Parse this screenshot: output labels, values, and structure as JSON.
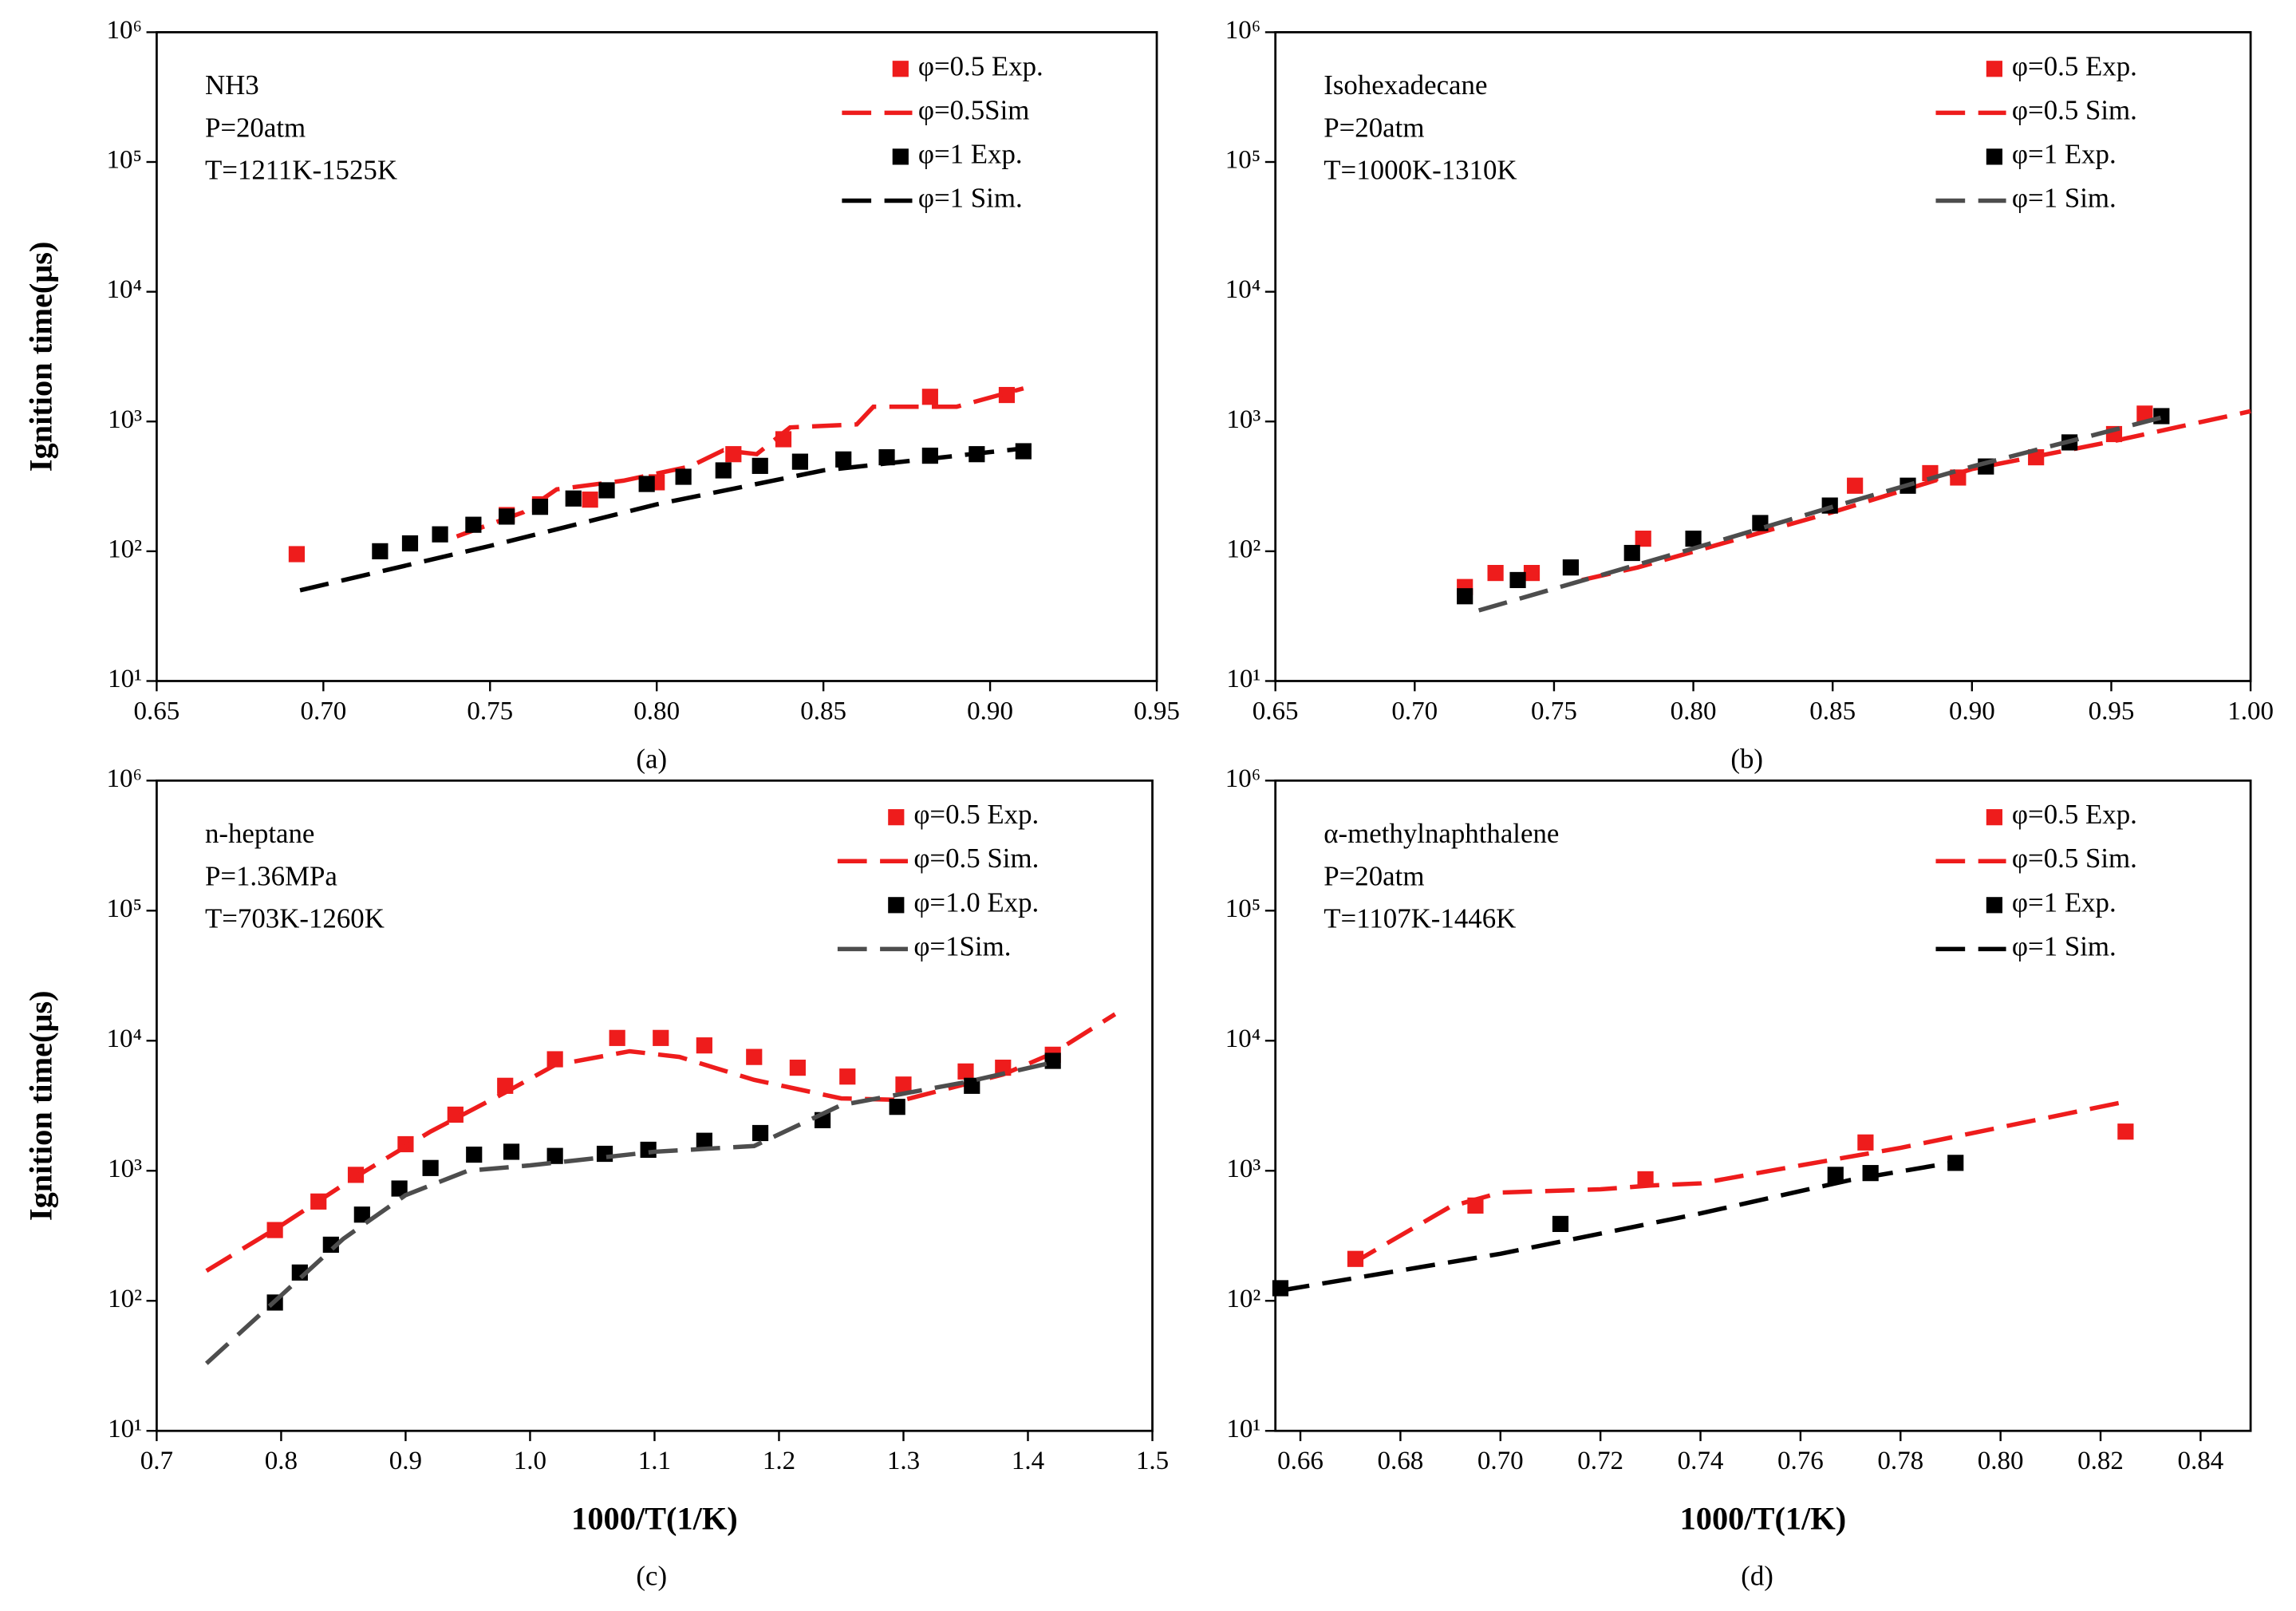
{
  "chart_data": [
    {
      "type": "line",
      "caption": "(a)",
      "ylabel": "Ignition time(μs)",
      "annotation": [
        "NH3",
        "P=20atm",
        "T=1211K-1525K"
      ],
      "log_y": true,
      "legend": "upper right",
      "annotation_corner": "upper left",
      "xlim": [
        0.65,
        0.95
      ],
      "xticks": [
        0.65,
        {
          "value": 0.7,
          "label": "0.70"
        },
        0.75,
        {
          "value": 0.8,
          "label": "0.80"
        },
        0.85,
        {
          "value": 0.9,
          "label": "0.90"
        },
        0.95
      ],
      "ylim": [
        10,
        1000000
      ],
      "yticks": [
        {
          "value": 10,
          "label": "10¹"
        },
        {
          "value": 100,
          "label": "10²"
        },
        {
          "value": 1000,
          "label": "10³"
        },
        {
          "value": 10000,
          "label": "10⁴"
        },
        {
          "value": 100000,
          "label": "10⁵"
        },
        {
          "value": 1000000,
          "label": "10⁶"
        }
      ],
      "series": [
        {
          "name": "φ=0.5 Exp.",
          "color": "#ee1c1c",
          "marker": "square",
          "x": [
            0.692,
            0.755,
            0.765,
            0.78,
            0.8,
            0.823,
            0.838,
            0.882,
            0.905
          ],
          "values": [
            95,
            190,
            230,
            250,
            340,
            560,
            730,
            1550,
            1600
          ]
        },
        {
          "name": "φ=0.5Sim",
          "color": "#ee1c1c",
          "dash": true,
          "x": [
            0.74,
            0.76,
            0.77,
            0.79,
            0.81,
            0.82,
            0.83,
            0.84,
            0.86,
            0.865,
            0.89,
            0.91
          ],
          "values": [
            130,
            200,
            300,
            350,
            450,
            600,
            560,
            900,
            950,
            1300,
            1300,
            1800
          ]
        },
        {
          "name": "φ=1 Exp.",
          "color": "#000000",
          "marker": "square",
          "x": [
            0.717,
            0.726,
            0.735,
            0.745,
            0.755,
            0.765,
            0.775,
            0.785,
            0.797,
            0.808,
            0.82,
            0.831,
            0.843,
            0.856,
            0.869,
            0.882,
            0.896,
            0.91
          ],
          "values": [
            100,
            115,
            135,
            160,
            185,
            220,
            255,
            295,
            330,
            375,
            420,
            455,
            490,
            510,
            530,
            545,
            560,
            590
          ]
        },
        {
          "name": "φ=1 Sim.",
          "color": "#000000",
          "dash": true,
          "x": [
            0.693,
            0.75,
            0.8,
            0.85,
            0.91
          ],
          "values": [
            50,
            110,
            230,
            420,
            620
          ]
        }
      ]
    },
    {
      "type": "line",
      "caption": "(b)",
      "annotation": [
        "Isohexadecane",
        "P=20atm",
        "T=1000K-1310K"
      ],
      "log_y": true,
      "legend": "upper right",
      "annotation_corner": "upper left",
      "xlim": [
        0.65,
        1.0
      ],
      "xticks": [
        0.65,
        {
          "value": 0.7,
          "label": "0.70"
        },
        0.75,
        {
          "value": 0.8,
          "label": "0.80"
        },
        0.85,
        {
          "value": 0.9,
          "label": "0.90"
        },
        0.95,
        {
          "value": 1.0,
          "label": "1.00"
        }
      ],
      "ylim": [
        10,
        1000000
      ],
      "yticks": [
        {
          "value": 10,
          "label": "10¹"
        },
        {
          "value": 100,
          "label": "10²"
        },
        {
          "value": 1000,
          "label": "10³"
        },
        {
          "value": 10000,
          "label": "10⁴"
        },
        {
          "value": 100000,
          "label": "10⁵"
        },
        {
          "value": 1000000,
          "label": "10⁶"
        }
      ],
      "series": [
        {
          "name": "φ=0.5 Exp.",
          "color": "#ee1c1c",
          "marker": "square",
          "x": [
            0.718,
            0.729,
            0.742,
            0.782,
            0.858,
            0.885,
            0.895,
            0.923,
            0.951,
            0.962
          ],
          "values": [
            53,
            68,
            68,
            125,
            320,
            400,
            370,
            530,
            800,
            1150
          ]
        },
        {
          "name": "φ=0.5 Sim.",
          "color": "#ee1c1c",
          "dash": true,
          "x": [
            0.76,
            0.78,
            0.85,
            0.9,
            0.95,
            1.0
          ],
          "values": [
            60,
            75,
            200,
            430,
            700,
            1200
          ]
        },
        {
          "name": "φ=1 Exp.",
          "color": "#000000",
          "marker": "square",
          "x": [
            0.718,
            0.737,
            0.756,
            0.778,
            0.8,
            0.824,
            0.849,
            0.877,
            0.905,
            0.935,
            0.968
          ],
          "values": [
            45,
            60,
            75,
            97,
            125,
            165,
            225,
            320,
            450,
            690,
            1100
          ]
        },
        {
          "name": "φ=1 Sim.",
          "color": "#4d4d4d",
          "dash": true,
          "x": [
            0.723,
            0.8,
            0.85,
            0.9,
            0.97
          ],
          "values": [
            35,
            105,
            220,
            450,
            1100
          ]
        }
      ]
    },
    {
      "type": "line",
      "caption": "(c)",
      "ylabel": "Ignition time(μs)",
      "xlabel": "1000/T(1/K)",
      "annotation": [
        "n-heptane",
        "P=1.36MPa",
        "T=703K-1260K"
      ],
      "log_y": true,
      "legend": "upper right",
      "annotation_corner": "upper left",
      "xlim": [
        0.7,
        1.5
      ],
      "xticks": [
        0.7,
        0.8,
        0.9,
        {
          "value": 1.0,
          "label": "1.0"
        },
        1.1,
        1.2,
        1.3,
        1.4,
        1.5
      ],
      "ylim": [
        10,
        1000000
      ],
      "yticks": [
        {
          "value": 10,
          "label": "10¹"
        },
        {
          "value": 100,
          "label": "10²"
        },
        {
          "value": 1000,
          "label": "10³"
        },
        {
          "value": 10000,
          "label": "10⁴"
        },
        {
          "value": 100000,
          "label": "10⁵"
        },
        {
          "value": 1000000,
          "label": "10⁶"
        }
      ],
      "series": [
        {
          "name": "φ=0.5 Exp.",
          "color": "#ee1c1c",
          "marker": "square",
          "x": [
            0.795,
            0.83,
            0.86,
            0.9,
            0.94,
            0.98,
            1.02,
            1.07,
            1.105,
            1.14,
            1.18,
            1.215,
            1.255,
            1.3,
            1.35,
            1.38,
            1.42
          ],
          "values": [
            350,
            580,
            930,
            1600,
            2700,
            4500,
            7200,
            10500,
            10500,
            9200,
            7500,
            6200,
            5300,
            4600,
            5800,
            6200,
            7800
          ]
        },
        {
          "name": "φ=0.5 Sim.",
          "color": "#ee1c1c",
          "dash": true,
          "x": [
            0.74,
            0.8,
            0.86,
            0.92,
            0.98,
            1.02,
            1.08,
            1.12,
            1.18,
            1.25,
            1.3,
            1.38,
            1.42,
            1.47
          ],
          "values": [
            170,
            380,
            900,
            2000,
            4000,
            6500,
            8300,
            7500,
            5000,
            3600,
            3500,
            5500,
            8000,
            16000
          ]
        },
        {
          "name": "φ=1.0 Exp.",
          "color": "#000000",
          "marker": "square",
          "x": [
            0.795,
            0.815,
            0.84,
            0.865,
            0.895,
            0.92,
            0.955,
            0.985,
            1.02,
            1.06,
            1.095,
            1.14,
            1.185,
            1.235,
            1.295,
            1.355,
            1.42
          ],
          "values": [
            97,
            165,
            270,
            460,
            730,
            1050,
            1330,
            1400,
            1300,
            1350,
            1450,
            1700,
            1950,
            2450,
            3100,
            4500,
            7000
          ]
        },
        {
          "name": "φ=1Sim.",
          "color": "#4d4d4d",
          "dash": true,
          "x": [
            0.74,
            0.8,
            0.85,
            0.9,
            0.95,
            1.0,
            1.1,
            1.18,
            1.25,
            1.35,
            1.42
          ],
          "values": [
            33,
            110,
            300,
            650,
            1000,
            1100,
            1400,
            1550,
            3200,
            4800,
            6800
          ]
        }
      ]
    },
    {
      "type": "line",
      "caption": "(d)",
      "xlabel": "1000/T(1/K)",
      "annotation": [
        "α-methylnaphthalene",
        "P=20atm",
        "T=1107K-1446K"
      ],
      "log_y": true,
      "legend": "upper right",
      "annotation_corner": "upper left",
      "xlim": [
        0.655,
        0.85
      ],
      "xticks": [
        0.66,
        0.68,
        {
          "value": 0.7,
          "label": "0.70"
        },
        0.72,
        0.74,
        0.76,
        0.78,
        {
          "value": 0.8,
          "label": "0.80"
        },
        0.82,
        0.84
      ],
      "ylim": [
        10,
        1000000
      ],
      "yticks": [
        {
          "value": 10,
          "label": "10¹"
        },
        {
          "value": 100,
          "label": "10²"
        },
        {
          "value": 1000,
          "label": "10³"
        },
        {
          "value": 10000,
          "label": "10⁴"
        },
        {
          "value": 100000,
          "label": "10⁵"
        },
        {
          "value": 1000000,
          "label": "10⁶"
        }
      ],
      "series": [
        {
          "name": "φ=0.5 Exp.",
          "color": "#ee1c1c",
          "marker": "square",
          "x": [
            0.671,
            0.695,
            0.729,
            0.773,
            0.825
          ],
          "values": [
            210,
            540,
            860,
            1650,
            2000
          ]
        },
        {
          "name": "φ=0.5 Sim.",
          "color": "#ee1c1c",
          "dash": true,
          "x": [
            0.67,
            0.69,
            0.7,
            0.72,
            0.73,
            0.74,
            0.76,
            0.78,
            0.825
          ],
          "values": [
            190,
            530,
            680,
            720,
            770,
            800,
            1100,
            1500,
            3400
          ]
        },
        {
          "name": "φ=1 Exp.",
          "color": "#000000",
          "marker": "square",
          "x": [
            0.656,
            0.712,
            0.767,
            0.774,
            0.791
          ],
          "values": [
            125,
            390,
            930,
            960,
            1150
          ]
        },
        {
          "name": "φ=1 Sim.",
          "color": "#000000",
          "dash": true,
          "x": [
            0.656,
            0.7,
            0.74,
            0.77,
            0.79
          ],
          "values": [
            120,
            230,
            470,
            850,
            1150
          ]
        }
      ]
    }
  ]
}
